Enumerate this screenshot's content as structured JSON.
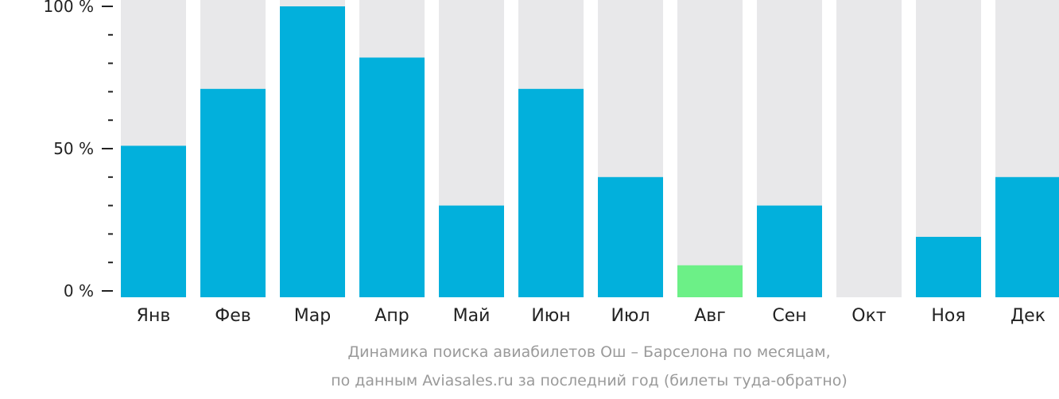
{
  "chart_data": {
    "type": "bar",
    "categories": [
      "Янв",
      "Фев",
      "Мар",
      "Апр",
      "Май",
      "Июн",
      "Июл",
      "Авг",
      "Сен",
      "Окт",
      "Ноя",
      "Дек"
    ],
    "values": [
      51,
      71,
      100,
      82,
      30,
      71,
      40,
      9,
      30,
      0,
      19,
      40
    ],
    "highlight_index": 7,
    "ylim": [
      0,
      100
    ],
    "y_ticks": [
      {
        "value": 0,
        "label": "0 %"
      },
      {
        "value": 50,
        "label": "50 %"
      },
      {
        "value": 100,
        "label": "100 %"
      }
    ],
    "minor_tick_step": 10,
    "grid": false,
    "colors": {
      "bar": "#02b0dc",
      "highlight": "#6cf087",
      "background_bar": "#e8e8ea"
    }
  },
  "caption": {
    "line1": "Динамика поиска авиабилетов Ош – Барселона по месяцам,",
    "line2": "по данным Aviasales.ru за последний год (билеты туда-обратно)"
  }
}
